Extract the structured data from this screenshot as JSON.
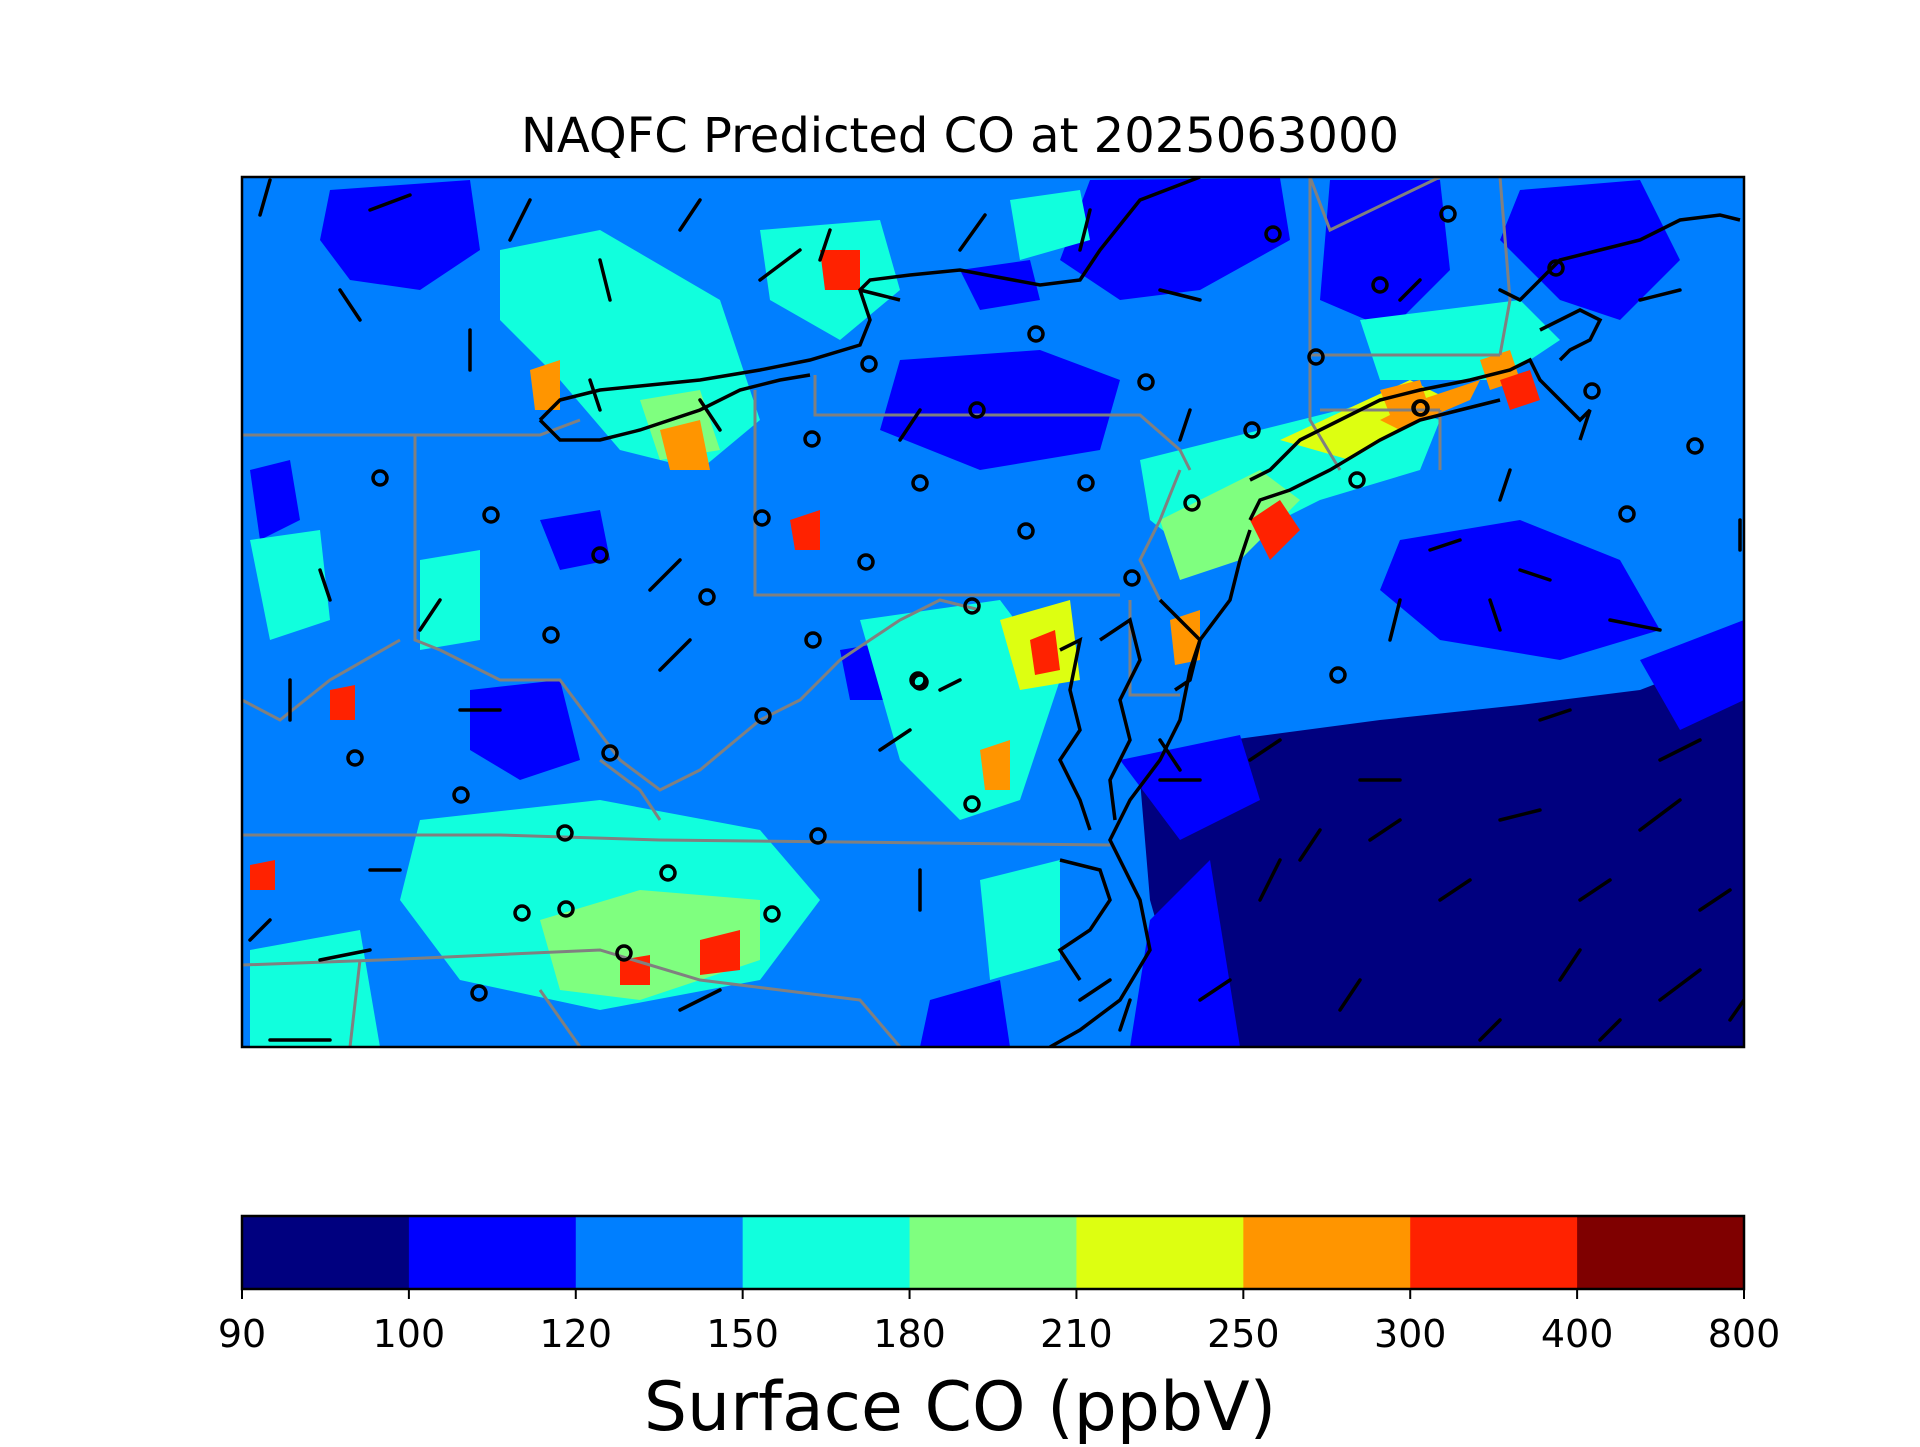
{
  "title": "NAQFC Predicted CO at 2025063000",
  "colorbar": {
    "label": "Surface CO (ppbV)",
    "ticks": [
      "90",
      "100",
      "120",
      "150",
      "180",
      "210",
      "250",
      "300",
      "400",
      "800"
    ],
    "colors": [
      "#00007f",
      "#0000ff",
      "#007fff",
      "#11ffdd",
      "#7fff7f",
      "#ddff11",
      "#ff9500",
      "#ff2200",
      "#7f0000"
    ]
  },
  "map": {
    "variable": "Surface CO",
    "units": "ppbV",
    "boundary_color": "#808080",
    "coast_color": "#000000"
  }
}
